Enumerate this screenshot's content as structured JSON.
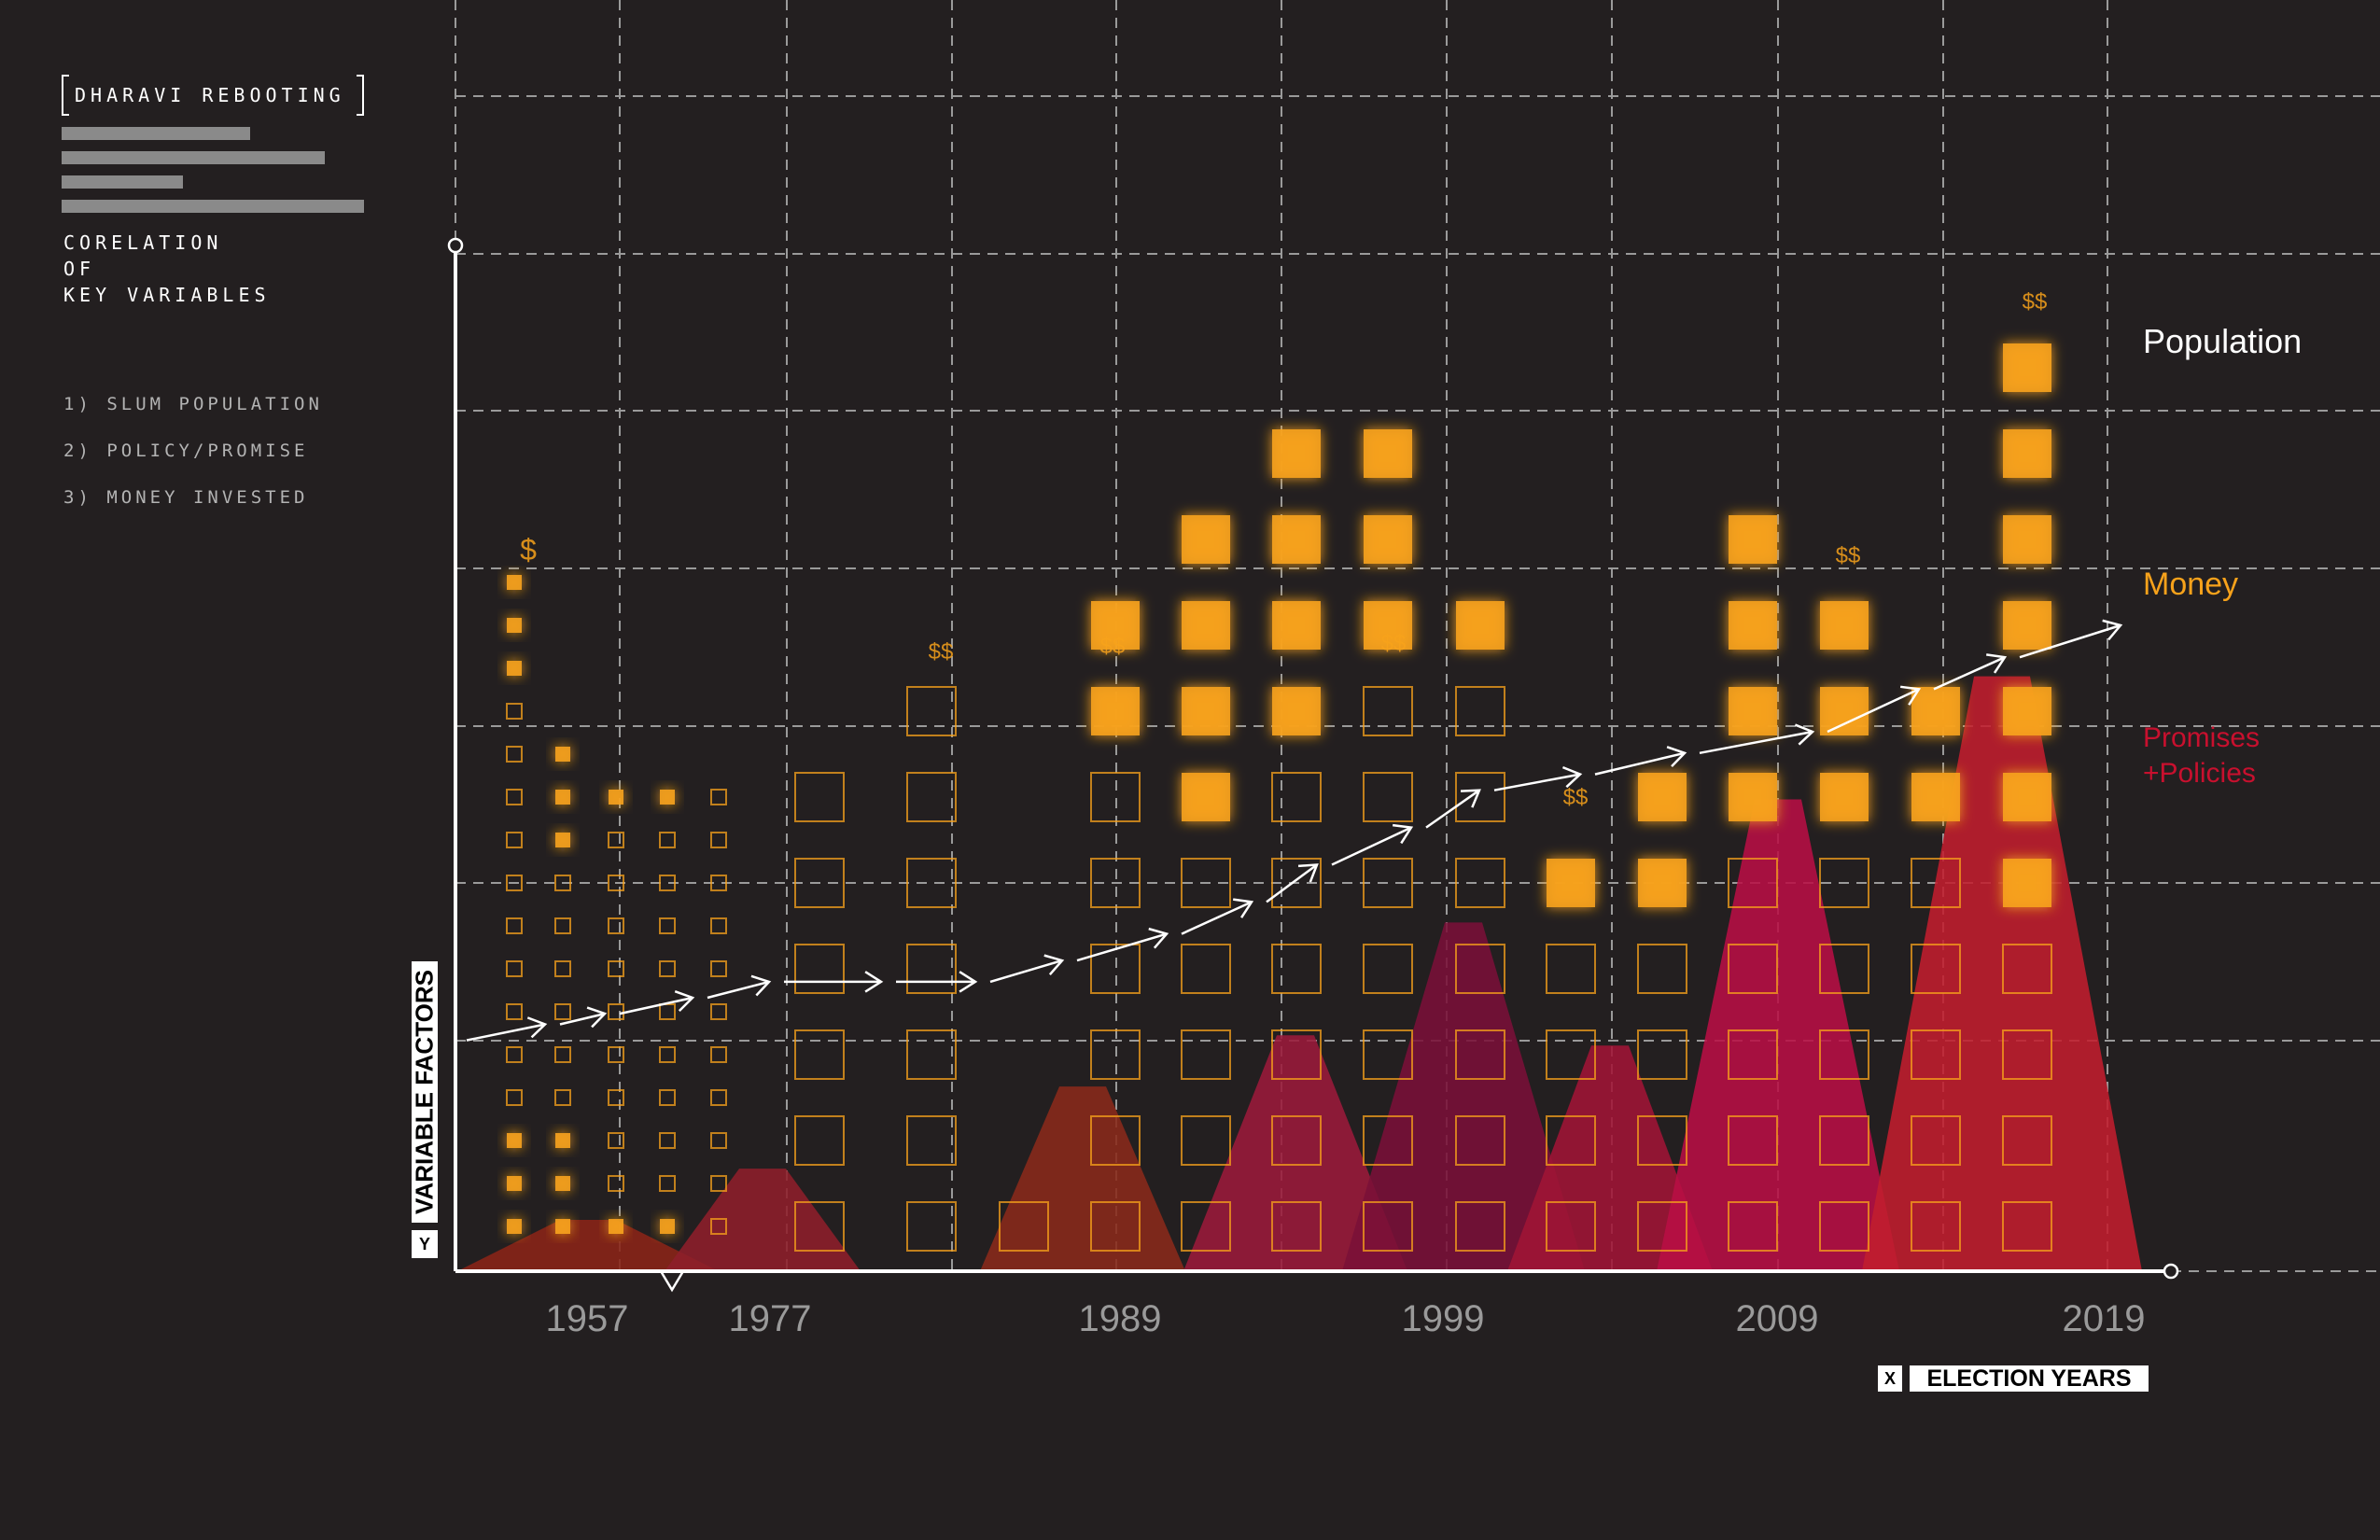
{
  "header": {
    "brand": "DHARAVI REBOOTING",
    "subtitle_lines": [
      "CORELATION",
      "OF",
      "KEY VARIABLES"
    ],
    "variables": [
      "1) SLUM POPULATION",
      "2) POLICY/PROMISE",
      "3) MONEY INVESTED"
    ]
  },
  "axes": {
    "y_label": "VARIABLE FACTORS",
    "y_tag": "Y",
    "x_label": "ELECTION YEARS",
    "x_tag": "X"
  },
  "colors": {
    "background": "#231f20",
    "money": "#f7a21b",
    "promises": "#c8102e",
    "population": "#ffffff",
    "grid": "#9a9a9a"
  },
  "chart_data": {
    "type": "area",
    "x_ticks": [
      "1957",
      "1977",
      "1989",
      "1999",
      "2009",
      "2019"
    ],
    "grid": true,
    "series_labels": {
      "population": "Population",
      "money": "Money",
      "promises": "Promises\n+Policies"
    },
    "money_markers": [
      "$",
      "$$",
      "$$",
      "$$",
      "$$",
      "$$",
      "$$"
    ],
    "promise_peaks": [
      {
        "label": "1957",
        "height": 0.05
      },
      {
        "label": "1977",
        "height": 0.1
      },
      {
        "label": "1989",
        "height": 0.18
      },
      {
        "label": "1994",
        "height": 0.23
      },
      {
        "label": "1999",
        "height": 0.34
      },
      {
        "label": "2004",
        "height": 0.22
      },
      {
        "label": "2009",
        "height": 0.46
      },
      {
        "label": "2019",
        "height": 0.58
      }
    ],
    "money_columns": [
      {
        "n": 16,
        "filled": 3
      },
      {
        "n": 12,
        "filled": 3
      },
      {
        "n": 11,
        "filled": 1
      },
      {
        "n": 11,
        "filled": 1
      },
      {
        "n": 11,
        "filled": 0
      },
      {
        "n": 6,
        "filled": 0
      },
      {
        "n": 7,
        "filled": 0
      },
      {
        "n": 1,
        "filled": 0
      },
      {
        "n": 8,
        "filled": 2
      },
      {
        "n": 9,
        "filled": 4
      },
      {
        "n": 10,
        "filled": 4
      },
      {
        "n": 10,
        "filled": 3
      },
      {
        "n": 8,
        "filled": 1
      },
      {
        "n": 5,
        "filled": 1
      },
      {
        "n": 6,
        "filled": 2
      },
      {
        "n": 9,
        "filled": 4
      },
      {
        "n": 8,
        "filled": 3
      },
      {
        "n": 7,
        "filled": 2
      },
      {
        "n": 11,
        "filled": 7
      }
    ],
    "population_trend": [
      0.42,
      0.45,
      0.47,
      0.5,
      0.53,
      0.53,
      0.53,
      0.57,
      0.62,
      0.68,
      0.75,
      0.82,
      0.89,
      0.92,
      0.96,
      1.0,
      1.08,
      1.14,
      1.2
    ]
  }
}
